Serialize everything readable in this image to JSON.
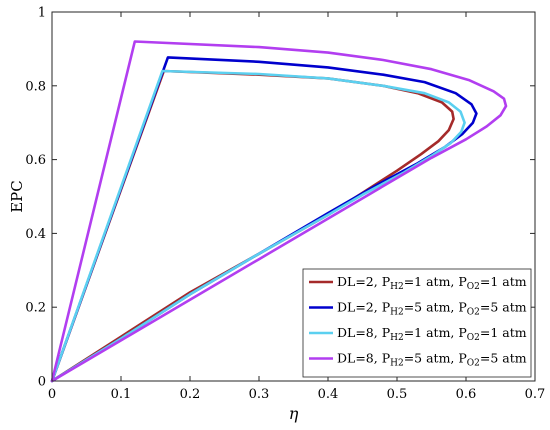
{
  "chart_data": {
    "type": "line",
    "xlabel": "η",
    "ylabel": "EPC",
    "xlim": [
      0,
      0.7
    ],
    "ylim": [
      0,
      1
    ],
    "xticks": [
      "0",
      "0.1",
      "0.2",
      "0.3",
      "0.4",
      "0.5",
      "0.6",
      "0.7"
    ],
    "yticks": [
      "0",
      "0.2",
      "0.4",
      "0.6",
      "0.8",
      "1"
    ],
    "legend_position": "bottom-right",
    "grid": false,
    "series": [
      {
        "name": "DL=2, PH2=1 atm, PO2=1 atm",
        "legend": {
          "pre": "DL=2, P",
          "sub1": "H2",
          "mid": "=1 atm, P",
          "sub2": "O2",
          "post": "=1 atm"
        },
        "color": "#a52a2a",
        "x": [
          0,
          0.162,
          0.3,
          0.4,
          0.48,
          0.53,
          0.565,
          0.58,
          0.582,
          0.575,
          0.56,
          0.535,
          0.5,
          0.45,
          0.4,
          0.3,
          0.2,
          0.1,
          0
        ],
        "y": [
          0,
          0.84,
          0.83,
          0.82,
          0.8,
          0.78,
          0.755,
          0.73,
          0.71,
          0.68,
          0.65,
          0.615,
          0.57,
          0.51,
          0.45,
          0.345,
          0.24,
          0.12,
          0
        ]
      },
      {
        "name": "DL=2, PH2=5 atm, PO2=5 atm",
        "legend": {
          "pre": "DL=2, P",
          "sub1": "H2",
          "mid": "=5 atm, P",
          "sub2": "O2",
          "post": "=5 atm"
        },
        "color": "#0000cd",
        "x": [
          0,
          0.168,
          0.3,
          0.4,
          0.48,
          0.54,
          0.585,
          0.608,
          0.615,
          0.61,
          0.595,
          0.57,
          0.53,
          0.47,
          0.4,
          0.3,
          0.2,
          0.1,
          0
        ],
        "y": [
          0,
          0.877,
          0.865,
          0.85,
          0.83,
          0.81,
          0.78,
          0.75,
          0.725,
          0.7,
          0.67,
          0.635,
          0.59,
          0.53,
          0.455,
          0.345,
          0.235,
          0.115,
          0
        ]
      },
      {
        "name": "DL=8, PH2=1 atm, PO2=1 atm",
        "legend": {
          "pre": "DL=8, P",
          "sub1": "H2",
          "mid": "=1 atm, P",
          "sub2": "O2",
          "post": "=1 atm"
        },
        "color": "#5bd0f0",
        "x": [
          0,
          0.16,
          0.3,
          0.4,
          0.48,
          0.54,
          0.575,
          0.592,
          0.598,
          0.593,
          0.578,
          0.55,
          0.51,
          0.45,
          0.4,
          0.3,
          0.2,
          0.1,
          0
        ],
        "y": [
          0,
          0.84,
          0.832,
          0.82,
          0.8,
          0.78,
          0.755,
          0.73,
          0.7,
          0.675,
          0.645,
          0.61,
          0.565,
          0.505,
          0.45,
          0.345,
          0.235,
          0.115,
          0
        ]
      },
      {
        "name": "DL=8, PH2=5 atm, PO2=5 atm",
        "legend": {
          "pre": "DL=8, P",
          "sub1": "H2",
          "mid": "=5 atm, P",
          "sub2": "O2",
          "post": "=5 atm"
        },
        "color": "#b23ef0",
        "x": [
          0,
          0.12,
          0.3,
          0.4,
          0.48,
          0.55,
          0.605,
          0.64,
          0.655,
          0.658,
          0.65,
          0.63,
          0.6,
          0.55,
          0.5,
          0.4,
          0.3,
          0.2,
          0.1,
          0
        ],
        "y": [
          0,
          0.92,
          0.905,
          0.89,
          0.87,
          0.845,
          0.815,
          0.785,
          0.765,
          0.745,
          0.72,
          0.69,
          0.655,
          0.605,
          0.55,
          0.44,
          0.33,
          0.22,
          0.11,
          0
        ]
      }
    ]
  }
}
